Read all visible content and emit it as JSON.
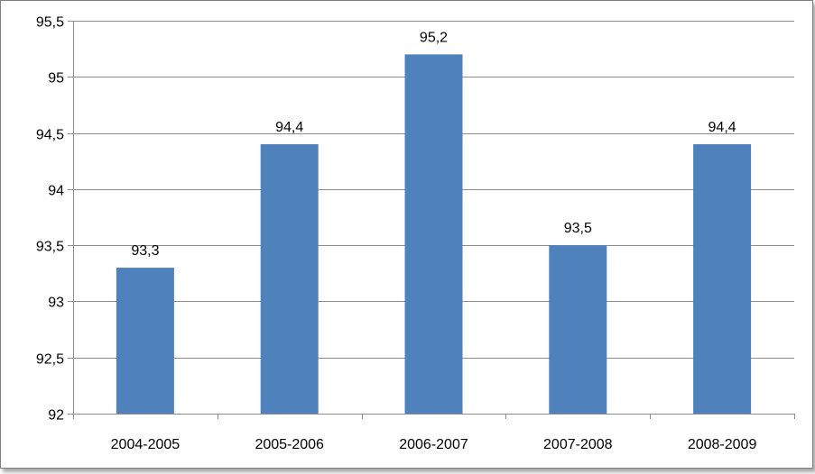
{
  "chart_data": {
    "type": "bar",
    "title": "",
    "xlabel": "",
    "ylabel": "",
    "categories": [
      "2004-2005",
      "2005-2006",
      "2006-2007",
      "2007-2008",
      "2008-2009"
    ],
    "values": [
      93.3,
      94.4,
      95.2,
      93.5,
      94.4
    ],
    "data_labels": [
      "93,3",
      "94,4",
      "95,2",
      "93,5",
      "94,4"
    ],
    "ylim": [
      92,
      95.5
    ],
    "yticks": [
      92,
      92.5,
      93,
      93.5,
      94,
      94.5,
      95,
      95.5
    ],
    "ytick_labels": [
      "92",
      "92,5",
      "93",
      "93,5",
      "94",
      "94,5",
      "95",
      "95,5"
    ],
    "grid": true,
    "legend": "none",
    "bar_color": "#4f81bd",
    "grid_color": "#8c8c8c"
  }
}
